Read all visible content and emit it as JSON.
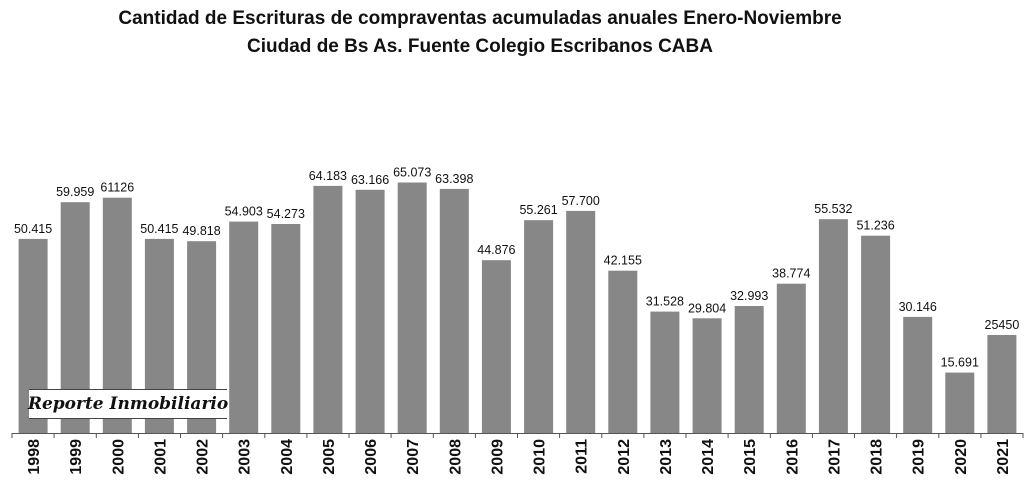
{
  "chart_data": {
    "type": "bar",
    "title": "Cantidad de Escrituras de compraventas acumuladas anuales Enero-Noviembre",
    "subtitle": "Ciudad de Bs As. Fuente Colegio Escribanos CABA",
    "categories": [
      "1998",
      "1999",
      "2000",
      "2001",
      "2002",
      "2003",
      "2004",
      "2005",
      "2006",
      "2007",
      "2008",
      "2009",
      "2010",
      "2011",
      "2012",
      "2013",
      "2014",
      "2015",
      "2016",
      "2017",
      "2018",
      "2019",
      "2020",
      "2021"
    ],
    "values": [
      50415,
      59959,
      61126,
      50415,
      49818,
      54903,
      54273,
      64183,
      63166,
      65073,
      63398,
      44876,
      55261,
      57700,
      42155,
      31528,
      29804,
      32993,
      38774,
      55532,
      51236,
      30146,
      15691,
      25450
    ],
    "value_labels": [
      "50.415",
      "59.959",
      "61126",
      "50.415",
      "49.818",
      "54.903",
      "54.273",
      "64.183",
      "63.166",
      "65.073",
      "63.398",
      "44.876",
      "55.261",
      "57.700",
      "42.155",
      "31.528",
      "29.804",
      "32.993",
      "38.774",
      "55.532",
      "51.236",
      "30.146",
      "15.691",
      "25450"
    ],
    "bar_color": "#878787",
    "ylim": [
      0,
      70000
    ],
    "grid": false,
    "legend": "none",
    "xlabel": "",
    "ylabel": ""
  },
  "watermark": {
    "text": "Reporte Inmobiliario"
  }
}
